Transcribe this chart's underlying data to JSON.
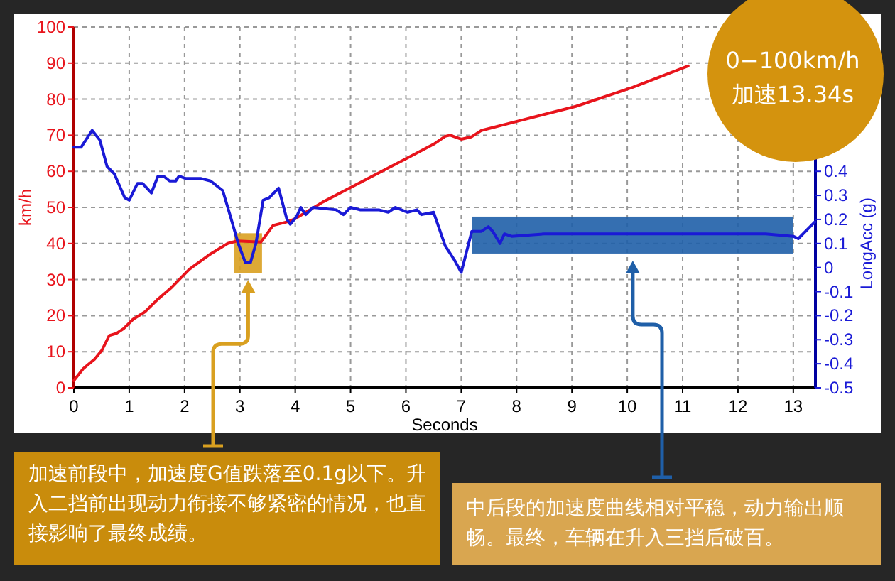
{
  "chart_data": {
    "type": "line",
    "xlabel": "Seconds",
    "ylabel": "km/h",
    "y2label": "LongAcc (g)",
    "xlim": [
      0,
      13.4
    ],
    "xticks": [
      0,
      1,
      2,
      3,
      4,
      5,
      6,
      7,
      8,
      9,
      10,
      11,
      12,
      13
    ],
    "ylim": [
      0,
      100
    ],
    "yticks": [
      0,
      10,
      20,
      30,
      40,
      50,
      60,
      70,
      80,
      90,
      100
    ],
    "y2lim": [
      -0.5,
      1.0
    ],
    "y2ticks": [
      -0.5,
      -0.4,
      -0.3,
      -0.2,
      -0.1,
      0,
      0.1,
      0.2,
      0.3,
      0.4
    ],
    "grid": true,
    "line_style": "solid",
    "series": [
      {
        "color": "#e8141c",
        "x": [
          0,
          0.17,
          0.38,
          0.51,
          0.64,
          0.77,
          0.9,
          1.07,
          1.28,
          1.5,
          1.75,
          2.09,
          2.44,
          2.78,
          2.95,
          3.38,
          3.6,
          3.85,
          3.98,
          4.5,
          5.0,
          5.5,
          6.0,
          6.5,
          6.71,
          6.8,
          7.0,
          7.19,
          7.36,
          8.07,
          9.07,
          10.1,
          11.1
        ],
        "values": [
          2,
          5.3,
          8,
          10.5,
          14.5,
          15.1,
          16.4,
          19,
          21,
          24.3,
          27.6,
          32.9,
          36.8,
          40,
          40.7,
          40.4,
          45,
          46,
          46.7,
          51.5,
          55.5,
          59.5,
          63.5,
          67.5,
          69.7,
          70,
          68.9,
          69.6,
          71.3,
          74.1,
          78,
          83.3,
          89.2
        ]
      },
      {
        "color": "#1a1ad6",
        "axis": "y2",
        "x": [
          0,
          0.13,
          0.33,
          0.47,
          0.6,
          0.73,
          0.92,
          1.0,
          1.15,
          1.24,
          1.4,
          1.52,
          1.62,
          1.73,
          1.84,
          1.9,
          2.02,
          2.3,
          2.47,
          2.69,
          2.82,
          2.97,
          3.1,
          3.19,
          3.29,
          3.42,
          3.53,
          3.7,
          3.85,
          3.91,
          4.02,
          4.1,
          4.19,
          4.32,
          4.74,
          4.87,
          5.0,
          5.17,
          5.51,
          5.68,
          5.81,
          6.03,
          6.2,
          6.28,
          6.5,
          6.71,
          6.88,
          7.0,
          7.19,
          7.36,
          7.49,
          7.57,
          7.7,
          7.78,
          7.91,
          8.5,
          9.0,
          9.5,
          10.0,
          10.5,
          11.0,
          11.5,
          12.0,
          12.5,
          13.0,
          13.09,
          13.39
        ],
        "values": [
          0.5,
          0.5,
          0.57,
          0.53,
          0.42,
          0.39,
          0.29,
          0.28,
          0.35,
          0.35,
          0.31,
          0.38,
          0.38,
          0.36,
          0.36,
          0.38,
          0.37,
          0.37,
          0.36,
          0.32,
          0.22,
          0.1,
          0.02,
          0.02,
          0.1,
          0.28,
          0.29,
          0.33,
          0.2,
          0.18,
          0.21,
          0.25,
          0.22,
          0.25,
          0.24,
          0.22,
          0.25,
          0.24,
          0.24,
          0.23,
          0.25,
          0.23,
          0.24,
          0.22,
          0.23,
          0.09,
          0.03,
          -0.02,
          0.15,
          0.15,
          0.17,
          0.15,
          0.1,
          0.14,
          0.13,
          0.14,
          0.14,
          0.14,
          0.14,
          0.14,
          0.14,
          0.14,
          0.14,
          0.14,
          0.13,
          0.12,
          0.19
        ]
      }
    ],
    "annotations": [
      "0−100km/h",
      "加速13.34s",
      "加速前段中，加速度G值跌落至0.1g以下。升入二挡前出现动力衔接不够紧密的情况，也直接影响了最终成绩。",
      "中后段的加速度曲线相对平稳，动力输出顺畅。最终，车辆在升入三挡后破百。"
    ],
    "bands": [
      {
        "axis": "x",
        "from": 2.9,
        "to": 3.4,
        "color": "#d9a020"
      },
      {
        "axis": "x",
        "from": 7.2,
        "to": 13.0,
        "color": "#1f5fa8"
      }
    ]
  }
}
